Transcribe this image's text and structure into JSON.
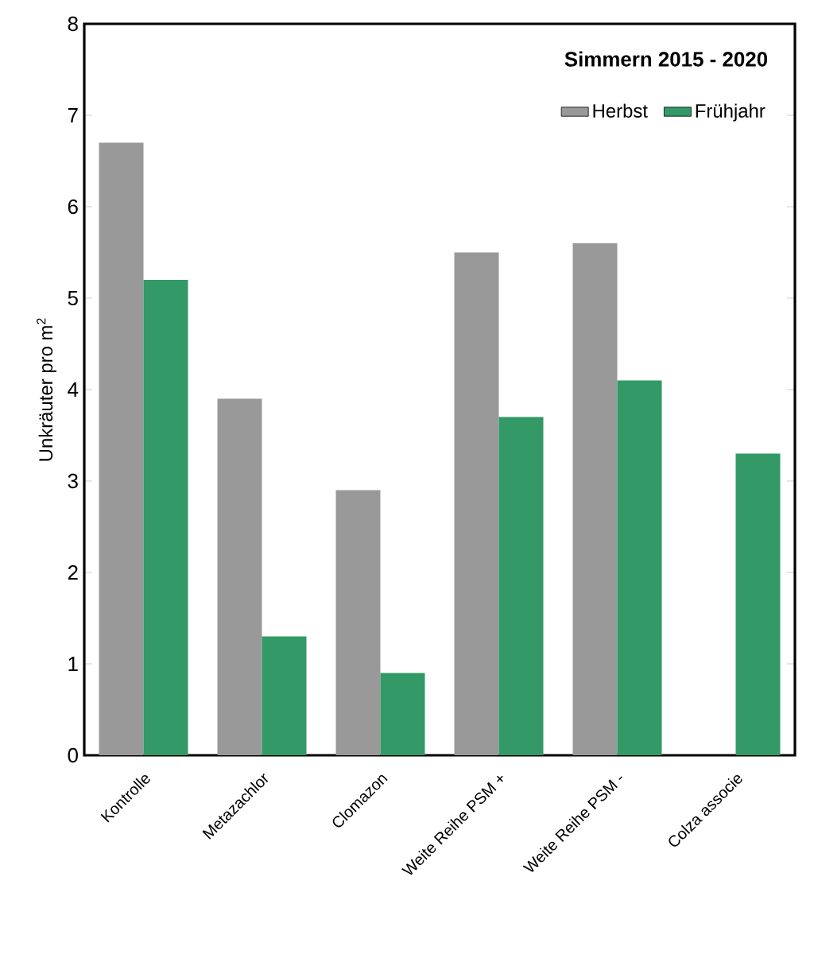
{
  "chart_data": {
    "type": "bar",
    "legend_title": "Simmern  2015 - 2020",
    "ylabel": "Unkräuter pro m$^{2}$",
    "categories": [
      "Kontrolle",
      "Metazachlor",
      "Clomazon",
      "Weite Reihe PSM +",
      "Weite Reihe PSM -",
      "Colza associe"
    ],
    "series": [
      {
        "name": "Herbst",
        "color": "#999999",
        "values": [
          6.7,
          3.9,
          2.9,
          5.5,
          5.6,
          null
        ]
      },
      {
        "name": "Frühjahr",
        "color": "#339966",
        "values": [
          5.2,
          1.3,
          0.9,
          3.7,
          4.1,
          3.3
        ]
      }
    ],
    "ylim": [
      0,
      8
    ],
    "yticks": [
      0,
      1,
      2,
      3,
      4,
      5,
      6,
      7,
      8
    ],
    "grid": false,
    "legend": "top right"
  }
}
